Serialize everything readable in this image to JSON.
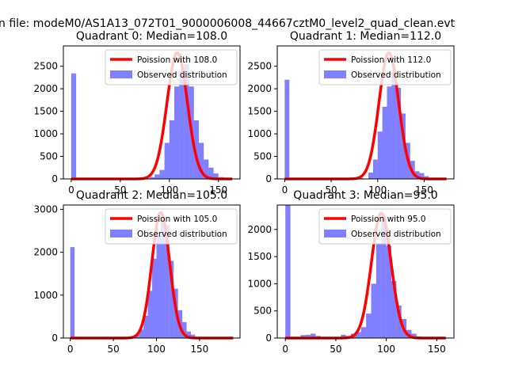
{
  "figure": {
    "suptitle": "n file: modeM0/AS1A13_072T01_9000006008_44667cztM0_level2_quad_clean.evt"
  },
  "colors": {
    "hist": "#0000ff",
    "curve": "#ff0000"
  },
  "chart_data": [
    {
      "type": "bar",
      "title": "Quadrant 0: Median=108.0",
      "xlim": [
        -8,
        172
      ],
      "ylim": [
        0,
        2950
      ],
      "xticks": [
        "0",
        "50",
        "100",
        "150"
      ],
      "yticks": [
        "0",
        "500",
        "1000",
        "1500",
        "2000",
        "2500"
      ],
      "legend": {
        "position": "top-right",
        "curve_label": "Poission with 108.0",
        "hist_label": "Observed distribution"
      },
      "median": 108,
      "curve_peak": 2800,
      "hist": [
        [
          0,
          2340
        ],
        [
          75,
          15
        ],
        [
          80,
          40
        ],
        [
          85,
          100
        ],
        [
          90,
          200
        ],
        [
          95,
          800
        ],
        [
          100,
          1300
        ],
        [
          105,
          2050
        ],
        [
          110,
          2400
        ],
        [
          115,
          2550
        ],
        [
          120,
          2050
        ],
        [
          125,
          1300
        ],
        [
          130,
          800
        ],
        [
          135,
          430
        ],
        [
          140,
          250
        ],
        [
          145,
          120
        ],
        [
          150,
          40
        ],
        [
          155,
          15
        ]
      ]
    },
    {
      "type": "bar",
      "title": "Quadrant 1: Median=112.0",
      "xlim": [
        -8,
        182
      ],
      "ylim": [
        0,
        2950
      ],
      "xticks": [
        "0",
        "50",
        "100",
        "150"
      ],
      "yticks": [
        "0",
        "500",
        "1000",
        "1500",
        "2000",
        "2500"
      ],
      "legend": {
        "position": "top-right",
        "curve_label": "Poission with 112.0",
        "hist_label": "Observed distribution"
      },
      "median": 112,
      "curve_peak": 2800,
      "hist": [
        [
          0,
          2200
        ],
        [
          70,
          5
        ],
        [
          80,
          20
        ],
        [
          90,
          140
        ],
        [
          95,
          430
        ],
        [
          100,
          1050
        ],
        [
          105,
          1600
        ],
        [
          110,
          2050
        ],
        [
          115,
          2400
        ],
        [
          120,
          2020
        ],
        [
          125,
          1450
        ],
        [
          130,
          800
        ],
        [
          135,
          400
        ],
        [
          140,
          170
        ],
        [
          145,
          130
        ],
        [
          150,
          60
        ],
        [
          155,
          10
        ]
      ]
    },
    {
      "type": "bar",
      "title": "Quadrant 2: Median=105.0",
      "xlim": [
        -8,
        197
      ],
      "ylim": [
        0,
        3100
      ],
      "xticks": [
        "0",
        "50",
        "100",
        "150"
      ],
      "yticks": [
        "0",
        "1000",
        "2000",
        "3000"
      ],
      "legend": {
        "position": "top-right",
        "curve_label": "Poission with 105.0",
        "hist_label": "Observed distribution"
      },
      "median": 105,
      "curve_peak": 2930,
      "hist": [
        [
          0,
          2120
        ],
        [
          70,
          15
        ],
        [
          75,
          80
        ],
        [
          80,
          200
        ],
        [
          85,
          520
        ],
        [
          90,
          1100
        ],
        [
          95,
          1850
        ],
        [
          100,
          2400
        ],
        [
          105,
          2800
        ],
        [
          110,
          2630
        ],
        [
          115,
          1800
        ],
        [
          120,
          1150
        ],
        [
          125,
          650
        ],
        [
          130,
          370
        ],
        [
          135,
          150
        ],
        [
          140,
          80
        ],
        [
          145,
          30
        ],
        [
          150,
          15
        ]
      ]
    },
    {
      "type": "bar",
      "title": "Quadrant 3: Median=95.0",
      "xlim": [
        -8,
        167
      ],
      "ylim": [
        0,
        2450
      ],
      "xticks": [
        "0",
        "50",
        "100",
        "150"
      ],
      "yticks": [
        "0",
        "500",
        "1000",
        "1500",
        "2000"
      ],
      "legend": {
        "position": "top-right",
        "curve_label": "Poission with 95.0",
        "hist_label": "Observed distribution"
      },
      "median": 95,
      "curve_peak": 2300,
      "hist": [
        [
          0,
          2450
        ],
        [
          15,
          55
        ],
        [
          20,
          60
        ],
        [
          25,
          80
        ],
        [
          30,
          40
        ],
        [
          50,
          20
        ],
        [
          55,
          60
        ],
        [
          60,
          40
        ],
        [
          65,
          80
        ],
        [
          70,
          110
        ],
        [
          75,
          200
        ],
        [
          80,
          450
        ],
        [
          85,
          1000
        ],
        [
          90,
          1750
        ],
        [
          95,
          2250
        ],
        [
          100,
          1700
        ],
        [
          105,
          1050
        ],
        [
          110,
          600
        ],
        [
          115,
          350
        ],
        [
          120,
          150
        ],
        [
          125,
          80
        ],
        [
          130,
          30
        ],
        [
          135,
          10
        ]
      ]
    }
  ]
}
